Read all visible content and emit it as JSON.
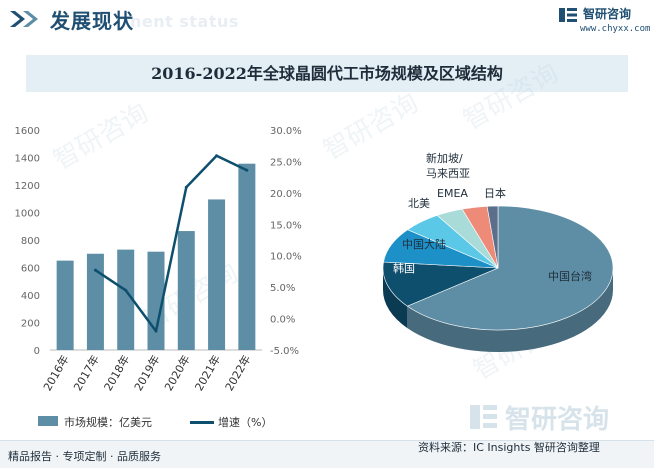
{
  "header": {
    "title": "发展现状",
    "watermark": "nent status",
    "brand_name": "智研咨询",
    "brand_url": "www.chyxx.com"
  },
  "chart_title": "2016-2022年全球晶圆代工市场规模及区域结构",
  "watermark_text": "智研咨询",
  "colors": {
    "bar": "#5e8ea5",
    "line": "#0f4f6e",
    "pie_taiwan": "#5e8ea5",
    "pie_korea": "#0f4f6e",
    "pie_china": "#1e90c8",
    "pie_northamerica": "#5bc8e8",
    "pie_emea": "#a9dcd8",
    "pie_singapore": "#ee8a78",
    "pie_japan": "#5b6f8a"
  },
  "chart_data": [
    {
      "type": "bar",
      "categories": [
        "2016年",
        "2017年",
        "2018年",
        "2019年",
        "2020年",
        "2021年",
        "2022年"
      ],
      "series": [
        {
          "name": "市场规模：亿美元",
          "type": "bar",
          "axis": "left",
          "values": [
            650,
            700,
            730,
            715,
            865,
            1095,
            1355
          ]
        },
        {
          "name": "增速（%）",
          "type": "line",
          "axis": "right",
          "values": [
            null,
            7.7,
            4.5,
            -2.0,
            20.9,
            25.9,
            23.6
          ]
        }
      ],
      "ylim_left": [
        0,
        1600
      ],
      "yticks_left": [
        "0",
        "200",
        "400",
        "600",
        "800",
        "1000",
        "1200",
        "1400",
        "1600"
      ],
      "ylim_right": [
        -5,
        30
      ],
      "yticks_right": [
        "-5.0%",
        "0.0%",
        "5.0%",
        "10.0%",
        "15.0%",
        "20.0%",
        "25.0%",
        "30.0%"
      ],
      "legend": "bottom"
    },
    {
      "type": "pie",
      "labels": [
        "中国台湾",
        "韩国",
        "中国大陆",
        "北美",
        "EMEA",
        "新加坡/马来西亚",
        "日本"
      ],
      "values": [
        64,
        12,
        9,
        5.5,
        3.8,
        3.5,
        1.5
      ]
    }
  ],
  "legend": {
    "bar_label": "市场规模：亿美元",
    "line_label": "增速（%）"
  },
  "footer": {
    "left_text": "精品报告 · 专项定制 · 品质服务",
    "source_text": "资料来源：IC Insights 智研咨询整理"
  }
}
